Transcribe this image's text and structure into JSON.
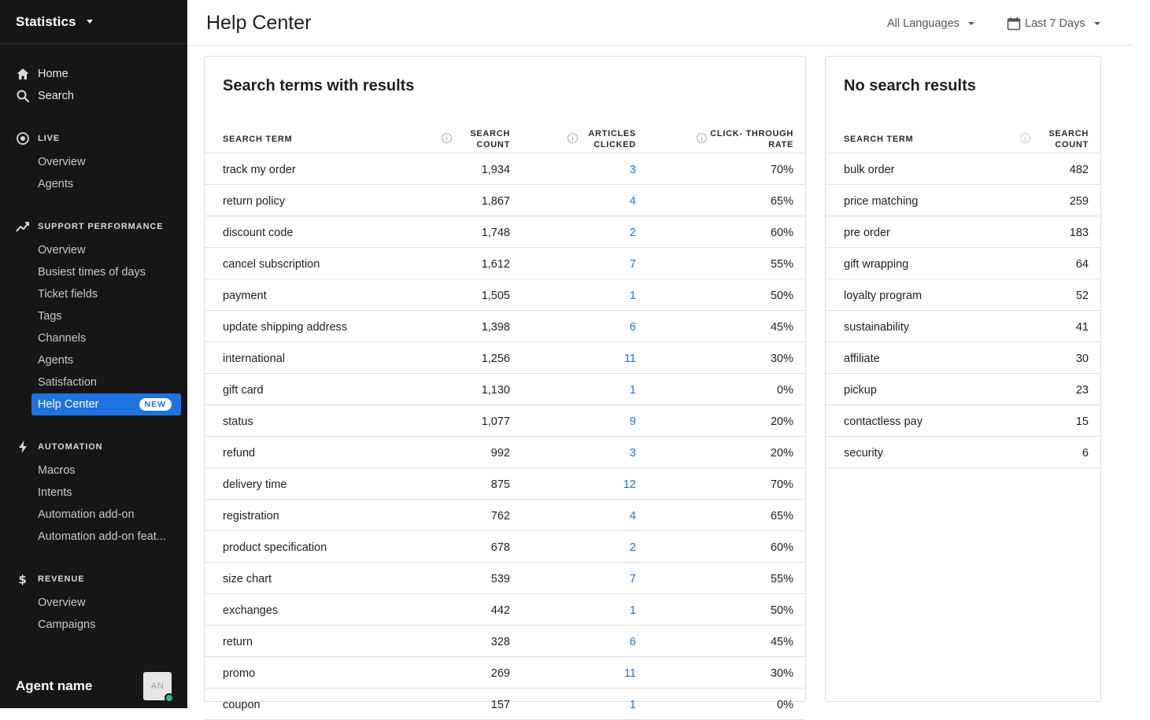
{
  "sidebar": {
    "title": "Statistics",
    "top_items": [
      {
        "label": "Home",
        "icon": "home-icon"
      },
      {
        "label": "Search",
        "icon": "search-icon"
      }
    ],
    "sections": [
      {
        "label": "LIVE",
        "icon": "live-icon",
        "items": [
          "Overview",
          "Agents"
        ]
      },
      {
        "label": "SUPPORT PERFORMANCE",
        "icon": "trend-icon",
        "items": [
          "Overview",
          "Busiest times of days",
          "Ticket fields",
          "Tags",
          "Channels",
          "Agents",
          "Satisfaction",
          "Help Center"
        ]
      },
      {
        "label": "AUTOMATION",
        "icon": "bolt-icon",
        "items": [
          "Macros",
          "Intents",
          "Automation add-on",
          "Automation add-on feat..."
        ]
      },
      {
        "label": "REVENUE",
        "icon": "dollar-icon",
        "items": [
          "Overview",
          "Campaigns"
        ]
      }
    ],
    "active_badge": "NEW",
    "agent_name": "Agent name",
    "avatar_initials": "AN"
  },
  "header": {
    "title": "Help Center",
    "language_filter": "All Languages",
    "date_filter": "Last 7 Days"
  },
  "results_table": {
    "title": "Search terms with results",
    "columns": [
      "SEARCH TERM",
      "SEARCH COUNT",
      "ARTICLES CLICKED",
      "CLICK- THROUGH RATE"
    ],
    "rows": [
      [
        "track my order",
        "1,934",
        "3",
        "70%"
      ],
      [
        "return policy",
        "1,867",
        "4",
        "65%"
      ],
      [
        "discount code",
        "1,748",
        "2",
        "60%"
      ],
      [
        "cancel subscription",
        "1,612",
        "7",
        "55%"
      ],
      [
        "payment",
        "1,505",
        "1",
        "50%"
      ],
      [
        "update shipping address",
        "1,398",
        "6",
        "45%"
      ],
      [
        "international",
        "1,256",
        "11",
        "30%"
      ],
      [
        "gift card",
        "1,130",
        "1",
        "0%"
      ],
      [
        "status",
        "1,077",
        "9",
        "20%"
      ],
      [
        "refund",
        "992",
        "3",
        "20%"
      ],
      [
        "delivery time",
        "875",
        "12",
        "70%"
      ],
      [
        "registration",
        "762",
        "4",
        "65%"
      ],
      [
        "product specification",
        "678",
        "2",
        "60%"
      ],
      [
        "size chart",
        "539",
        "7",
        "55%"
      ],
      [
        "exchanges",
        "442",
        "1",
        "50%"
      ],
      [
        "return",
        "328",
        "6",
        "45%"
      ],
      [
        "promo",
        "269",
        "11",
        "30%"
      ],
      [
        "coupon",
        "157",
        "1",
        "0%"
      ]
    ]
  },
  "no_results_table": {
    "title": "No search results",
    "columns": [
      "SEARCH TERM",
      "SEARCH COUNT"
    ],
    "rows": [
      [
        "bulk order",
        "482"
      ],
      [
        "price matching",
        "259"
      ],
      [
        "pre order",
        "183"
      ],
      [
        "gift wrapping",
        "64"
      ],
      [
        "loyalty program",
        "52"
      ],
      [
        "sustainability",
        "41"
      ],
      [
        "affiliate",
        "30"
      ],
      [
        "pickup",
        "23"
      ],
      [
        "contactless pay",
        "15"
      ],
      [
        "security",
        "6"
      ]
    ]
  },
  "colors": {
    "sidebar_bg": "#161616",
    "accent": "#1f73e0",
    "online": "#27c08d"
  }
}
